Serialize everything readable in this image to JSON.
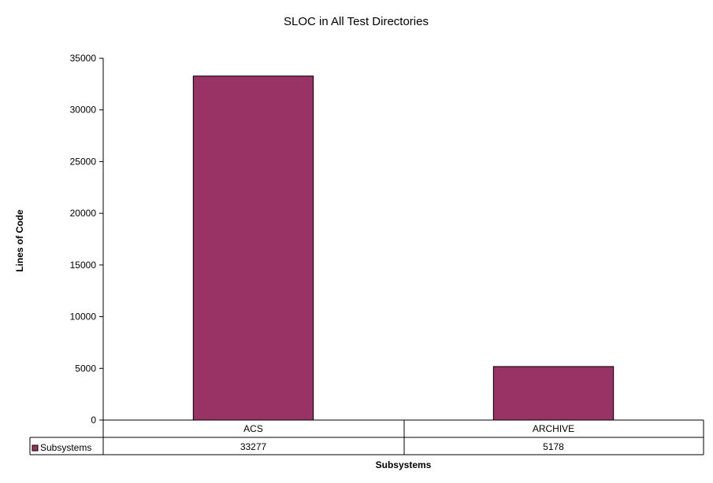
{
  "chart_data": {
    "type": "bar",
    "title": "SLOC in All Test Directories",
    "xlabel": "Subsystems",
    "ylabel": "Lines of Code",
    "categories": [
      "ACS",
      "ARCHIVE"
    ],
    "series": [
      {
        "name": "Subsystems",
        "values": [
          33277,
          5178
        ],
        "color": "#993366"
      }
    ],
    "ylim": [
      0,
      35000
    ],
    "yticks": [
      "0",
      "5000",
      "10000",
      "15000",
      "20000",
      "25000",
      "30000",
      "35000"
    ],
    "grid": false,
    "legend": "data-table",
    "table_values": [
      "33277",
      "5178"
    ]
  }
}
